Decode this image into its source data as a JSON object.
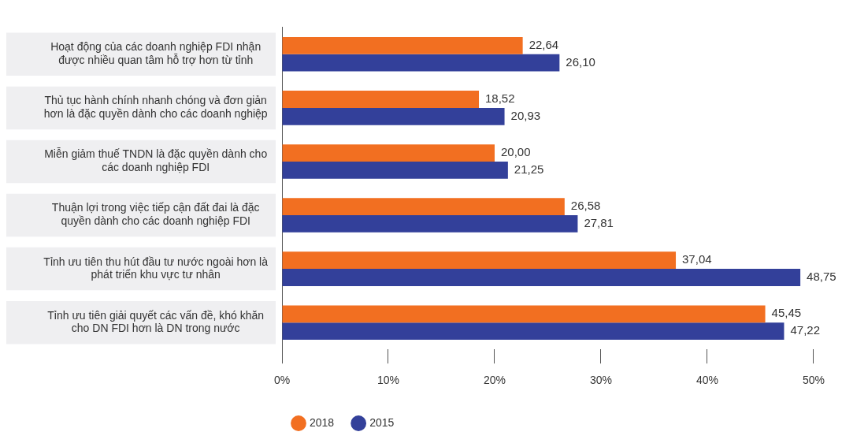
{
  "chart_data": {
    "type": "bar",
    "orientation": "horizontal",
    "categories": [
      "Hoạt động của các doanh nghiệp FDI nhận được nhiều quan tâm hỗ trợ hơn từ tỉnh",
      "Thủ tục hành chính nhanh chóng và đơn giản hơn là đặc quyền dành cho các doanh nghiệp",
      "Miễn giảm thuế TNDN là đặc quyền dành cho các doanh nghiệp FDI",
      "Thuận lợi trong việc tiếp cận đất đai là đặc quyền dành cho các doanh nghiệp FDI",
      "Tỉnh ưu tiên thu hút đầu tư nước ngoài hơn là phát triển khu vực tư nhân",
      "Tỉnh ưu tiên giải quyết các vấn đề, khó khăn cho DN FDI hơn là DN trong nước"
    ],
    "series": [
      {
        "name": "2018",
        "color": "#f26f21",
        "values": [
          22.64,
          18.52,
          20.0,
          26.58,
          37.04,
          45.45
        ],
        "value_labels": [
          "22,64",
          "18,52",
          "20,00",
          "26,58",
          "37,04",
          "45,45"
        ]
      },
      {
        "name": "2015",
        "color": "#33409a",
        "values": [
          26.1,
          20.93,
          21.25,
          27.81,
          48.75,
          47.22
        ],
        "value_labels": [
          "26,10",
          "20,93",
          "21,25",
          "27,81",
          "48,75",
          "47,22"
        ]
      }
    ],
    "xlim": [
      0,
      50
    ],
    "xticks": [
      {
        "value": 0,
        "label": "0%"
      },
      {
        "value": 10,
        "label": "10%"
      },
      {
        "value": 20,
        "label": "20%"
      },
      {
        "value": 30,
        "label": "30%"
      },
      {
        "value": 40,
        "label": "40%"
      },
      {
        "value": 50,
        "label": "50%"
      }
    ],
    "legend": "bottom left"
  }
}
